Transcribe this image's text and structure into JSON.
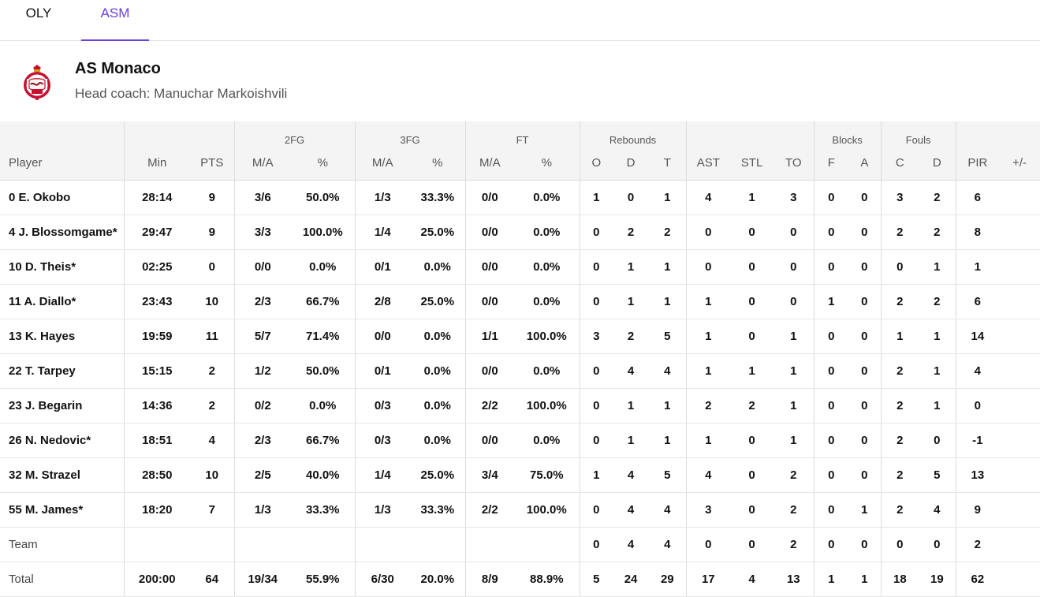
{
  "tabs": [
    {
      "label": "OLY",
      "active": false
    },
    {
      "label": "ASM",
      "active": true
    }
  ],
  "accent_color": "#6b3fe0",
  "team": {
    "logo_icon": "as-monaco-crest-icon",
    "name": "AS Monaco",
    "coach": "Head coach: Manuchar Markoishvili"
  },
  "table": {
    "groups": {
      "fg2": "2FG",
      "fg3": "3FG",
      "ft": "FT",
      "rebounds": "Rebounds",
      "blocks": "Blocks",
      "fouls": "Fouls"
    },
    "columns": [
      "Player",
      "Min",
      "PTS",
      "M/A",
      "%",
      "M/A",
      "%",
      "M/A",
      "%",
      "O",
      "D",
      "T",
      "AST",
      "STL",
      "TO",
      "F",
      "A",
      "C",
      "D",
      "PIR",
      "+/-"
    ],
    "rows": [
      [
        "0 E. Okobo",
        "28:14",
        "9",
        "3/6",
        "50.0%",
        "1/3",
        "33.3%",
        "0/0",
        "0.0%",
        "1",
        "0",
        "1",
        "4",
        "1",
        "3",
        "0",
        "0",
        "3",
        "2",
        "6",
        ""
      ],
      [
        "4 J. Blossomgame*",
        "29:47",
        "9",
        "3/3",
        "100.0%",
        "1/4",
        "25.0%",
        "0/0",
        "0.0%",
        "0",
        "2",
        "2",
        "0",
        "0",
        "0",
        "0",
        "0",
        "2",
        "2",
        "8",
        ""
      ],
      [
        "10 D. Theis*",
        "02:25",
        "0",
        "0/0",
        "0.0%",
        "0/1",
        "0.0%",
        "0/0",
        "0.0%",
        "0",
        "1",
        "1",
        "0",
        "0",
        "0",
        "0",
        "0",
        "0",
        "1",
        "1",
        ""
      ],
      [
        "11 A. Diallo*",
        "23:43",
        "10",
        "2/3",
        "66.7%",
        "2/8",
        "25.0%",
        "0/0",
        "0.0%",
        "0",
        "1",
        "1",
        "1",
        "0",
        "0",
        "1",
        "0",
        "2",
        "2",
        "6",
        ""
      ],
      [
        "13 K. Hayes",
        "19:59",
        "11",
        "5/7",
        "71.4%",
        "0/0",
        "0.0%",
        "1/1",
        "100.0%",
        "3",
        "2",
        "5",
        "1",
        "0",
        "1",
        "0",
        "0",
        "1",
        "1",
        "14",
        ""
      ],
      [
        "22 T. Tarpey",
        "15:15",
        "2",
        "1/2",
        "50.0%",
        "0/1",
        "0.0%",
        "0/0",
        "0.0%",
        "0",
        "4",
        "4",
        "1",
        "1",
        "1",
        "0",
        "0",
        "2",
        "1",
        "4",
        ""
      ],
      [
        "23 J. Begarin",
        "14:36",
        "2",
        "0/2",
        "0.0%",
        "0/3",
        "0.0%",
        "2/2",
        "100.0%",
        "0",
        "1",
        "1",
        "2",
        "2",
        "1",
        "0",
        "0",
        "2",
        "1",
        "0",
        ""
      ],
      [
        "26 N. Nedovic*",
        "18:51",
        "4",
        "2/3",
        "66.7%",
        "0/3",
        "0.0%",
        "0/0",
        "0.0%",
        "0",
        "1",
        "1",
        "1",
        "0",
        "1",
        "0",
        "0",
        "2",
        "0",
        "-1",
        ""
      ],
      [
        "32 M. Strazel",
        "28:50",
        "10",
        "2/5",
        "40.0%",
        "1/4",
        "25.0%",
        "3/4",
        "75.0%",
        "1",
        "4",
        "5",
        "4",
        "0",
        "2",
        "0",
        "0",
        "2",
        "5",
        "13",
        ""
      ],
      [
        "55 M. James*",
        "18:20",
        "7",
        "1/3",
        "33.3%",
        "1/3",
        "33.3%",
        "2/2",
        "100.0%",
        "0",
        "4",
        "4",
        "3",
        "0",
        "2",
        "0",
        "1",
        "2",
        "4",
        "9",
        ""
      ]
    ],
    "team_row": [
      "Team",
      "",
      "",
      "",
      "",
      "",
      "",
      "",
      "",
      "0",
      "4",
      "4",
      "0",
      "0",
      "2",
      "0",
      "0",
      "0",
      "0",
      "2",
      ""
    ],
    "total_row": [
      "Total",
      "200:00",
      "64",
      "19/34",
      "55.9%",
      "6/30",
      "20.0%",
      "8/9",
      "88.9%",
      "5",
      "24",
      "29",
      "17",
      "4",
      "13",
      "1",
      "1",
      "18",
      "19",
      "62",
      ""
    ]
  }
}
